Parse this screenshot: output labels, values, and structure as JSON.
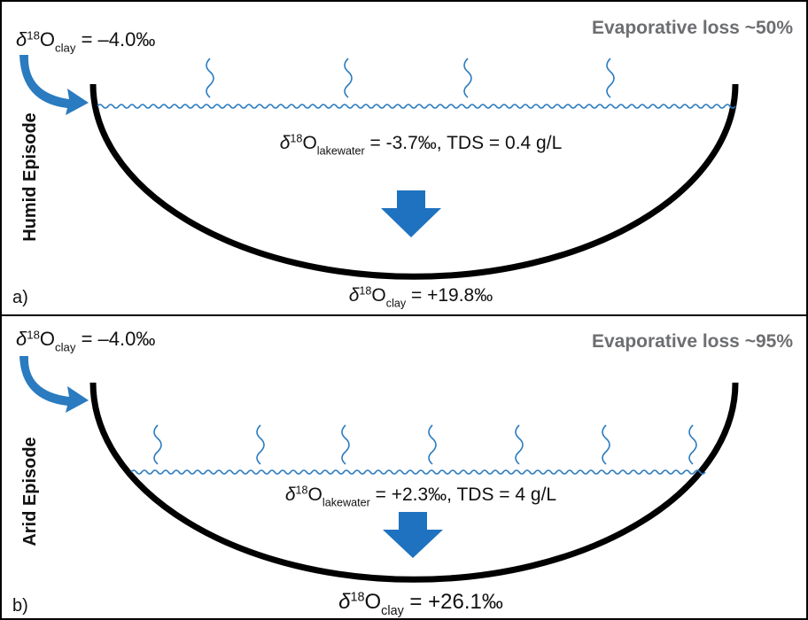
{
  "panels": [
    {
      "letter": "a)",
      "episode": "Humid Episode",
      "evaporative_loss": "Evaporative loss ~50%",
      "inflow": {
        "symbol": "δ",
        "sup": "18",
        "base": "O",
        "sub": "clay",
        "rest": " = –4.0‰"
      },
      "lakewater": {
        "symbol": "δ",
        "sup": "18",
        "base": "O",
        "sub": "lakewater",
        "rest": " = -3.7‰, TDS = 0.4 g/L"
      },
      "sediment": {
        "symbol": "δ",
        "sup": "18",
        "base": "O",
        "sub": "clay",
        "rest": " = +19.8‰"
      }
    },
    {
      "letter": "b)",
      "episode": "Arid Episode",
      "evaporative_loss": "Evaporative loss ~95%",
      "inflow": {
        "symbol": "δ",
        "sup": "18",
        "base": "O",
        "sub": "clay",
        "rest": " = –4.0‰"
      },
      "lakewater": {
        "symbol": "δ",
        "sup": "18",
        "base": "O",
        "sub": "lakewater",
        "rest": " = +2.3‰, TDS = 4 g/L"
      },
      "sediment": {
        "symbol": "δ",
        "sup": "18",
        "base": "O",
        "sub": "clay",
        "rest": " = +26.1‰"
      }
    }
  ]
}
